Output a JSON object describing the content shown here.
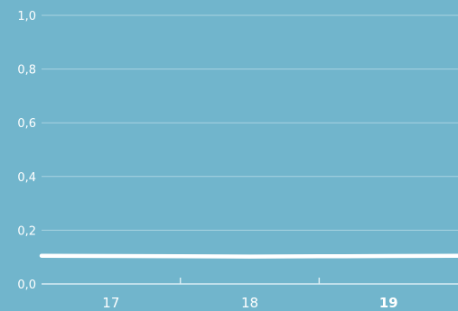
{
  "chart_data": {
    "type": "line",
    "title": "",
    "xlabel": "",
    "ylabel": "",
    "ylim": [
      0,
      1
    ],
    "y_ticks": [
      "0,0",
      "0,2",
      "0,4",
      "0,6",
      "0,8",
      "1,0"
    ],
    "y_tick_values": [
      0,
      0.2,
      0.4,
      0.6,
      0.8,
      1.0
    ],
    "categories": [
      "17",
      "18",
      "19"
    ],
    "highlight_category": "19",
    "x": [
      16.5,
      17,
      17.5,
      18,
      18.5,
      19,
      19.5
    ],
    "series": [
      {
        "values": [
          0.105,
          0.104,
          0.103,
          0.102,
          0.103,
          0.104,
          0.105
        ]
      }
    ],
    "grid": true,
    "colors": {
      "background": "#71b5cc",
      "grid": "#a9d3e1",
      "line": "#ffffff",
      "text": "#ffffff"
    }
  }
}
